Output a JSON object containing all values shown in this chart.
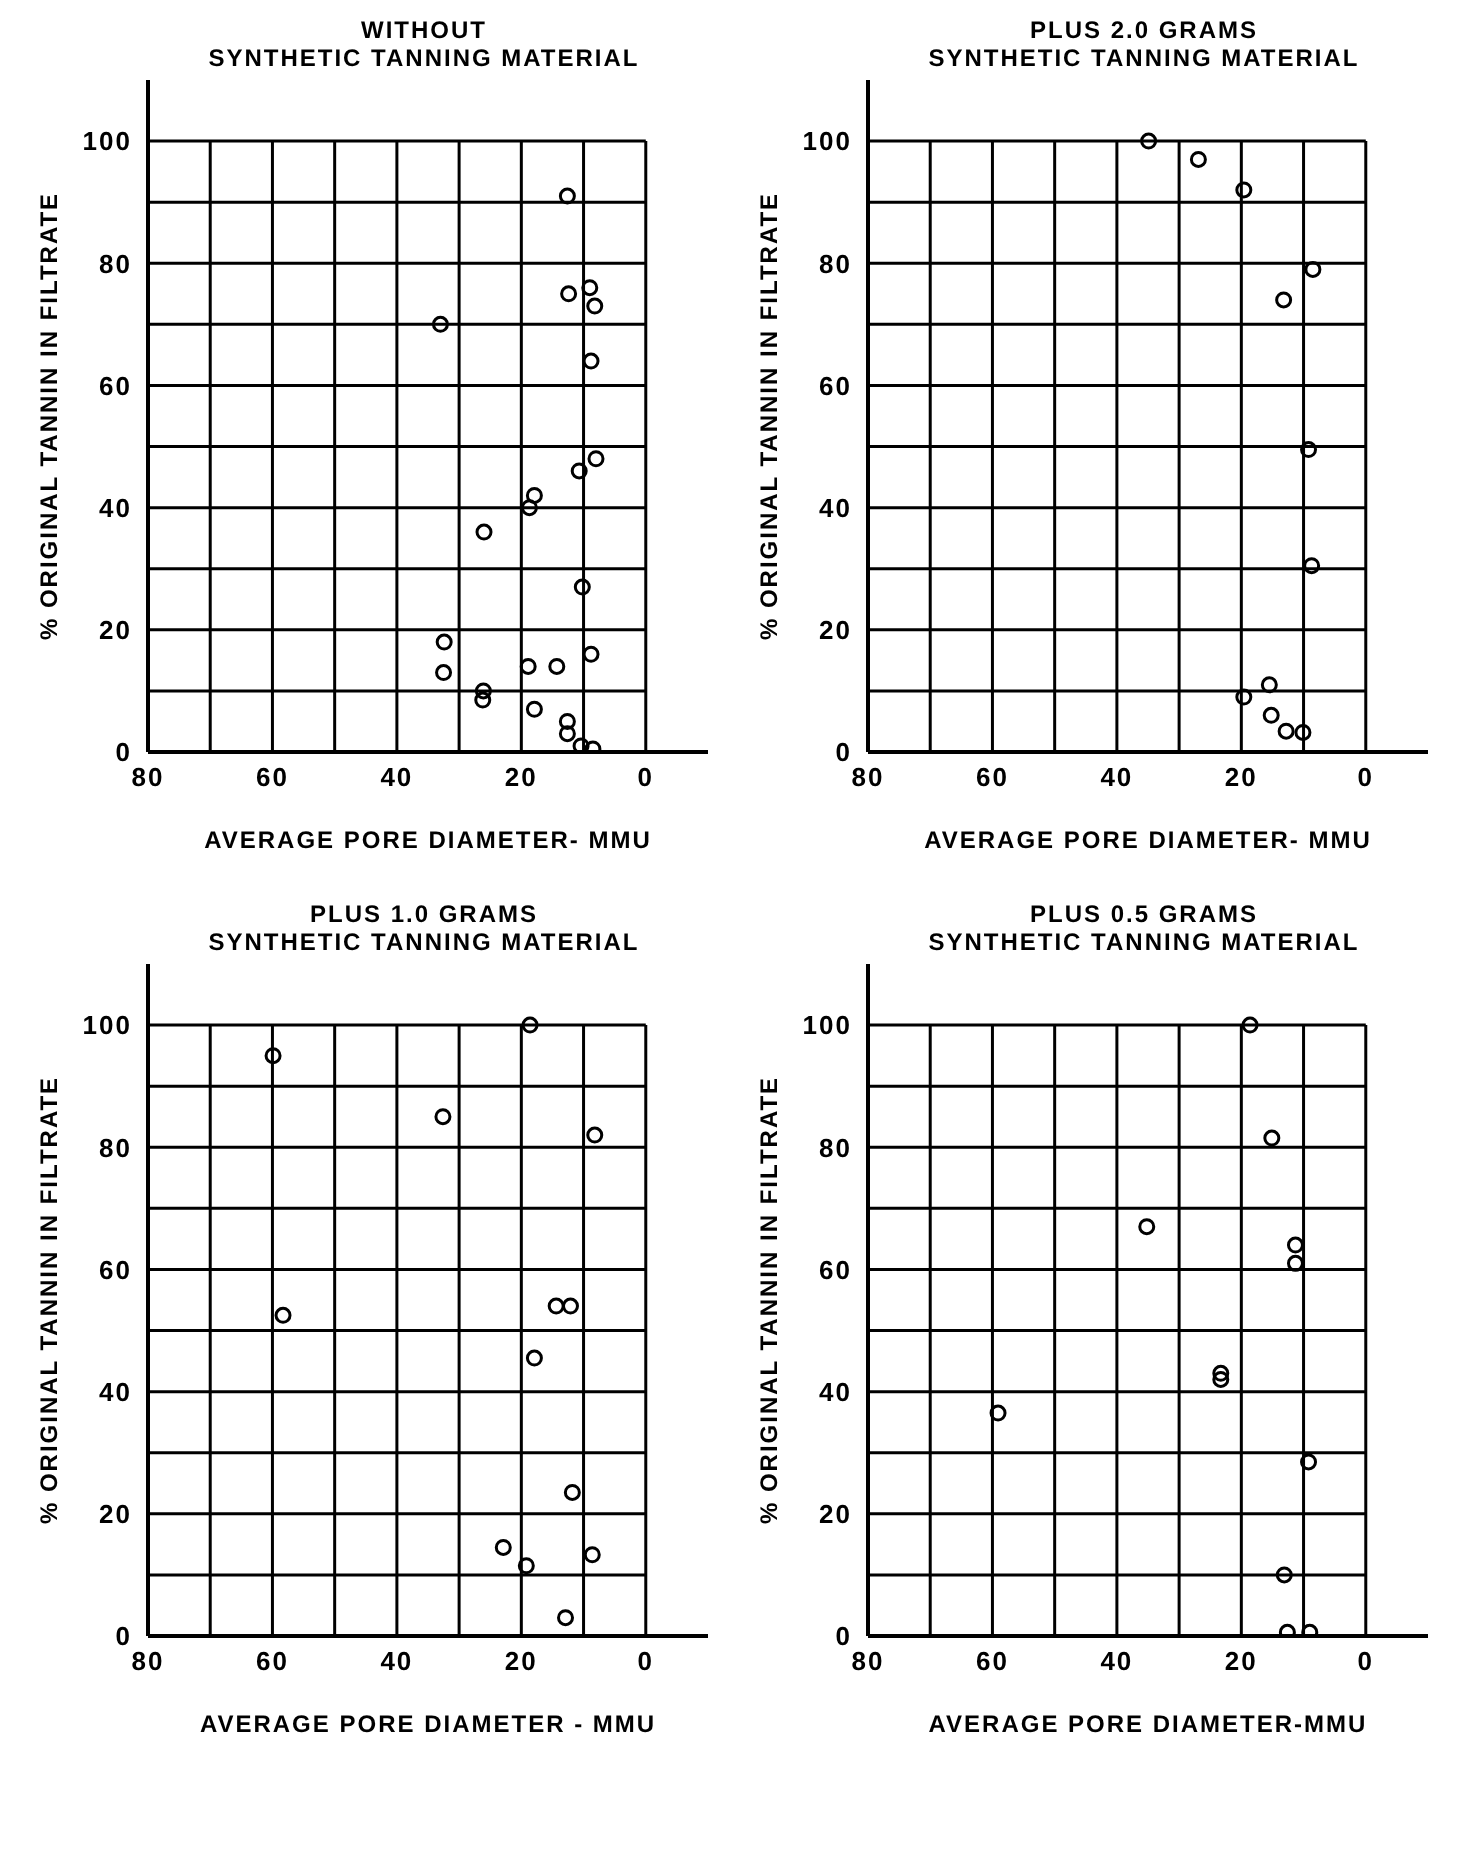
{
  "chart_data": [
    {
      "type": "scatter",
      "title": "WITHOUT",
      "subtitle": "SYNTHETIC TANNING MATERIAL",
      "xlabel": "AVERAGE PORE DIAMETER- MMU",
      "ylabel": "% ORIGINAL TANNIN IN FILTRATE",
      "x": [
        12.6,
        12.4,
        9,
        8.2,
        33,
        8.8,
        8,
        10.7,
        17.9,
        18.7,
        26,
        10.2,
        32.4,
        32.5,
        8.8,
        18.9,
        14.3,
        26.1,
        26.2,
        17.9,
        12.6,
        12.6,
        10.4,
        8.5
      ],
      "values": [
        91,
        75,
        76,
        73,
        70,
        64,
        48,
        46,
        42,
        40,
        36,
        27,
        18,
        13,
        16,
        14,
        14,
        10,
        8.5,
        7,
        5,
        3,
        1,
        0.5
      ],
      "color": "#000000",
      "marker": "circle",
      "grid": true,
      "xlim": [
        80,
        -10
      ],
      "xticks": [
        80,
        {
          "value": 70,
          "label": null
        },
        60,
        {
          "value": 50,
          "label": null
        },
        40,
        {
          "value": 30,
          "label": null
        },
        20,
        {
          "value": 10,
          "label": null
        },
        0
      ],
      "ylim": [
        0,
        110
      ],
      "yticks": [
        0,
        {
          "value": 10,
          "label": null
        },
        20,
        {
          "value": 30,
          "label": null
        },
        40,
        {
          "value": 50,
          "label": null
        },
        60,
        {
          "value": 70,
          "label": null
        },
        80,
        {
          "value": 90,
          "label": null
        },
        100
      ]
    },
    {
      "type": "scatter",
      "title": "PLUS 2.0 GRAMS",
      "subtitle": "SYNTHETIC TANNING MATERIAL",
      "xlabel": "AVERAGE PORE DIAMETER- MMU",
      "ylabel": "% ORIGINAL TANNIN IN FILTRATE",
      "x": [
        34.9,
        26.9,
        19.6,
        8.5,
        13.2,
        9.2,
        8.7,
        15.5,
        19.6,
        15.2,
        12.8,
        10.1
      ],
      "values": [
        100,
        97,
        92,
        79,
        74,
        49.5,
        30.5,
        11,
        9,
        6,
        3.4,
        3.2
      ],
      "color": "#000000",
      "marker": "circle",
      "grid": true,
      "xlim": [
        80,
        -10
      ],
      "xticks": [
        80,
        {
          "value": 70,
          "label": null
        },
        60,
        {
          "value": 50,
          "label": null
        },
        40,
        {
          "value": 30,
          "label": null
        },
        20,
        {
          "value": 10,
          "label": null
        },
        0
      ],
      "ylim": [
        0,
        110
      ],
      "yticks": [
        0,
        {
          "value": 10,
          "label": null
        },
        20,
        {
          "value": 30,
          "label": null
        },
        40,
        {
          "value": 50,
          "label": null
        },
        60,
        {
          "value": 70,
          "label": null
        },
        80,
        {
          "value": 90,
          "label": null
        },
        100
      ]
    },
    {
      "type": "scatter",
      "title": "PLUS 1.0 GRAMS",
      "subtitle": "SYNTHETIC TANNING MATERIAL",
      "xlabel": "AVERAGE PORE DIAMETER - MMU",
      "ylabel": "% ORIGINAL TANNIN IN FILTRATE",
      "x": [
        59.9,
        58.3,
        32.6,
        18.6,
        8.2,
        14.4,
        12.1,
        17.9,
        11.8,
        22.9,
        19.2,
        8.6,
        12.9
      ],
      "values": [
        95,
        52.5,
        85,
        100,
        82,
        54,
        54,
        45.5,
        23.5,
        14.5,
        11.5,
        13.3,
        3
      ],
      "color": "#000000",
      "marker": "circle",
      "grid": true,
      "xlim": [
        80,
        -10
      ],
      "xticks": [
        80,
        {
          "value": 70,
          "label": null
        },
        60,
        {
          "value": 50,
          "label": null
        },
        40,
        {
          "value": 30,
          "label": null
        },
        20,
        {
          "value": 10,
          "label": null
        },
        0
      ],
      "ylim": [
        0,
        110
      ],
      "yticks": [
        0,
        {
          "value": 10,
          "label": null
        },
        20,
        {
          "value": 30,
          "label": null
        },
        40,
        {
          "value": 50,
          "label": null
        },
        60,
        {
          "value": 70,
          "label": null
        },
        80,
        {
          "value": 90,
          "label": null
        },
        100
      ]
    },
    {
      "type": "scatter",
      "title": "PLUS 0.5 GRAMS",
      "subtitle": "SYNTHETIC TANNING MATERIAL",
      "xlabel": "AVERAGE PORE DIAMETER-MMU",
      "ylabel": "% ORIGINAL TANNIN IN FILTRATE",
      "x": [
        18.6,
        15.1,
        35.2,
        11.3,
        11.3,
        23.3,
        23.3,
        59.1,
        9.2,
        13.1,
        12.6,
        9
      ],
      "values": [
        100,
        81.5,
        67,
        64,
        61,
        43,
        42,
        36.5,
        28.5,
        10,
        0.6,
        0.6
      ],
      "color": "#000000",
      "marker": "circle",
      "grid": true,
      "xlim": [
        80,
        -10
      ],
      "xticks": [
        80,
        {
          "value": 70,
          "label": null
        },
        60,
        {
          "value": 50,
          "label": null
        },
        40,
        {
          "value": 30,
          "label": null
        },
        20,
        {
          "value": 10,
          "label": null
        },
        0
      ],
      "ylim": [
        0,
        110
      ],
      "yticks": [
        0,
        {
          "value": 10,
          "label": null
        },
        20,
        {
          "value": 30,
          "label": null
        },
        40,
        {
          "value": 50,
          "label": null
        },
        60,
        {
          "value": 70,
          "label": null
        },
        80,
        {
          "value": 90,
          "label": null
        },
        100
      ]
    }
  ]
}
